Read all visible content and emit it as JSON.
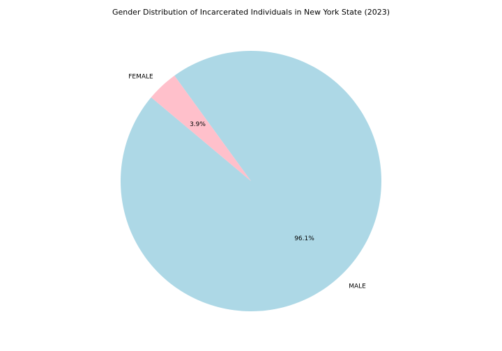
{
  "chart_data": {
    "type": "pie",
    "title": "Gender Distribution of Incarcerated Individuals in New York State (2023)",
    "slices": [
      {
        "label": "MALE",
        "percent": 96.1,
        "pct_label": "96.1%",
        "color": "#add8e6"
      },
      {
        "label": "FEMALE",
        "percent": 3.9,
        "pct_label": "3.9%",
        "color": "#ffc0cb"
      }
    ],
    "legend": "none"
  }
}
